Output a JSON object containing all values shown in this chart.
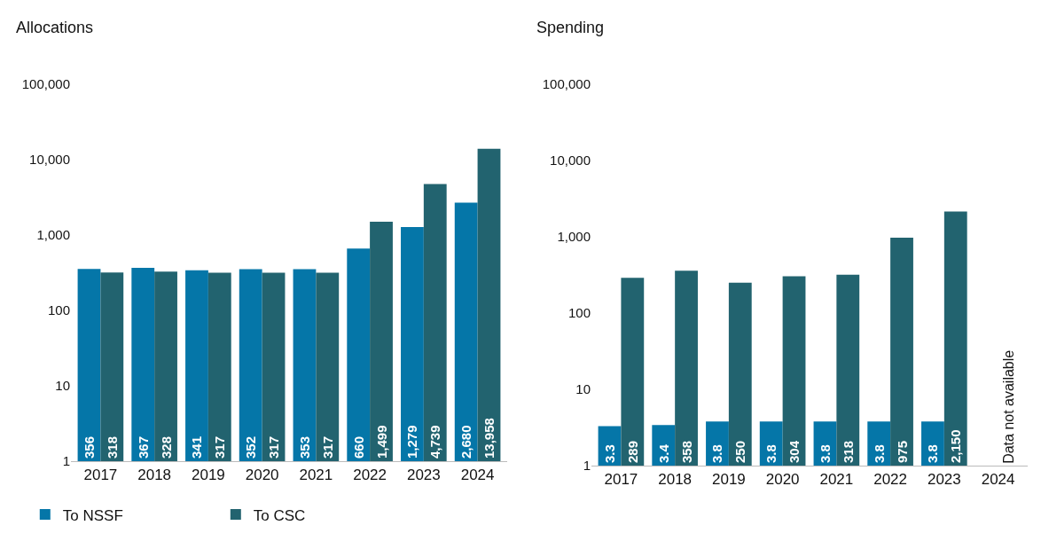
{
  "chart_data": [
    {
      "type": "bar",
      "title": "Allocations",
      "categories": [
        "2017",
        "2018",
        "2019",
        "2020",
        "2021",
        "2022",
        "2023",
        "2024"
      ],
      "series": [
        {
          "name": "To NSSF",
          "color": "#0576a8",
          "values": [
            356,
            367,
            341,
            352,
            353,
            660,
            1279,
            2680
          ],
          "value_labels": [
            "356",
            "367",
            "341",
            "352",
            "353",
            "660",
            "1,279",
            "2,680"
          ]
        },
        {
          "name": "To CSC",
          "color": "#22636f",
          "values": [
            318,
            328,
            317,
            317,
            317,
            1499,
            4739,
            13958
          ],
          "value_labels": [
            "318",
            "328",
            "317",
            "317",
            "317",
            "1,499",
            "4,739",
            "13,958"
          ]
        }
      ],
      "log": true,
      "ylim": [
        1,
        100000
      ],
      "yticks": [
        1,
        10,
        100,
        {
          "value": 1000,
          "label": "1,000"
        },
        {
          "value": 10000,
          "label": "10,000"
        },
        {
          "value": 100000,
          "label": "100,000"
        }
      ],
      "legend": "bottom",
      "grid": false
    },
    {
      "type": "bar",
      "title": "Spending",
      "categories": [
        "2017",
        "2018",
        "2019",
        "2020",
        "2021",
        "2022",
        "2023",
        "2024"
      ],
      "series": [
        {
          "color": "#0576a8",
          "values": [
            3.3,
            3.4,
            3.8,
            3.8,
            3.8,
            3.8,
            3.8,
            null
          ],
          "value_labels": [
            "3.3",
            "3.4",
            "3.8",
            "3.8",
            "3.8",
            "3.8",
            "3.8",
            null
          ]
        },
        {
          "color": "#22636f",
          "values": [
            289,
            358,
            250,
            304,
            318,
            975,
            2150,
            null
          ],
          "value_labels": [
            "289",
            "358",
            "250",
            "304",
            "318",
            "975",
            "2,150",
            null
          ]
        }
      ],
      "log": true,
      "ylim": [
        1,
        100000
      ],
      "yticks": [
        1,
        10,
        100,
        {
          "value": 1000,
          "label": "1,000"
        },
        {
          "value": 10000,
          "label": "10,000"
        },
        {
          "value": 100000,
          "label": "100,000"
        }
      ],
      "legend": false,
      "grid": false,
      "annotations": [
        "Data not available"
      ]
    }
  ]
}
